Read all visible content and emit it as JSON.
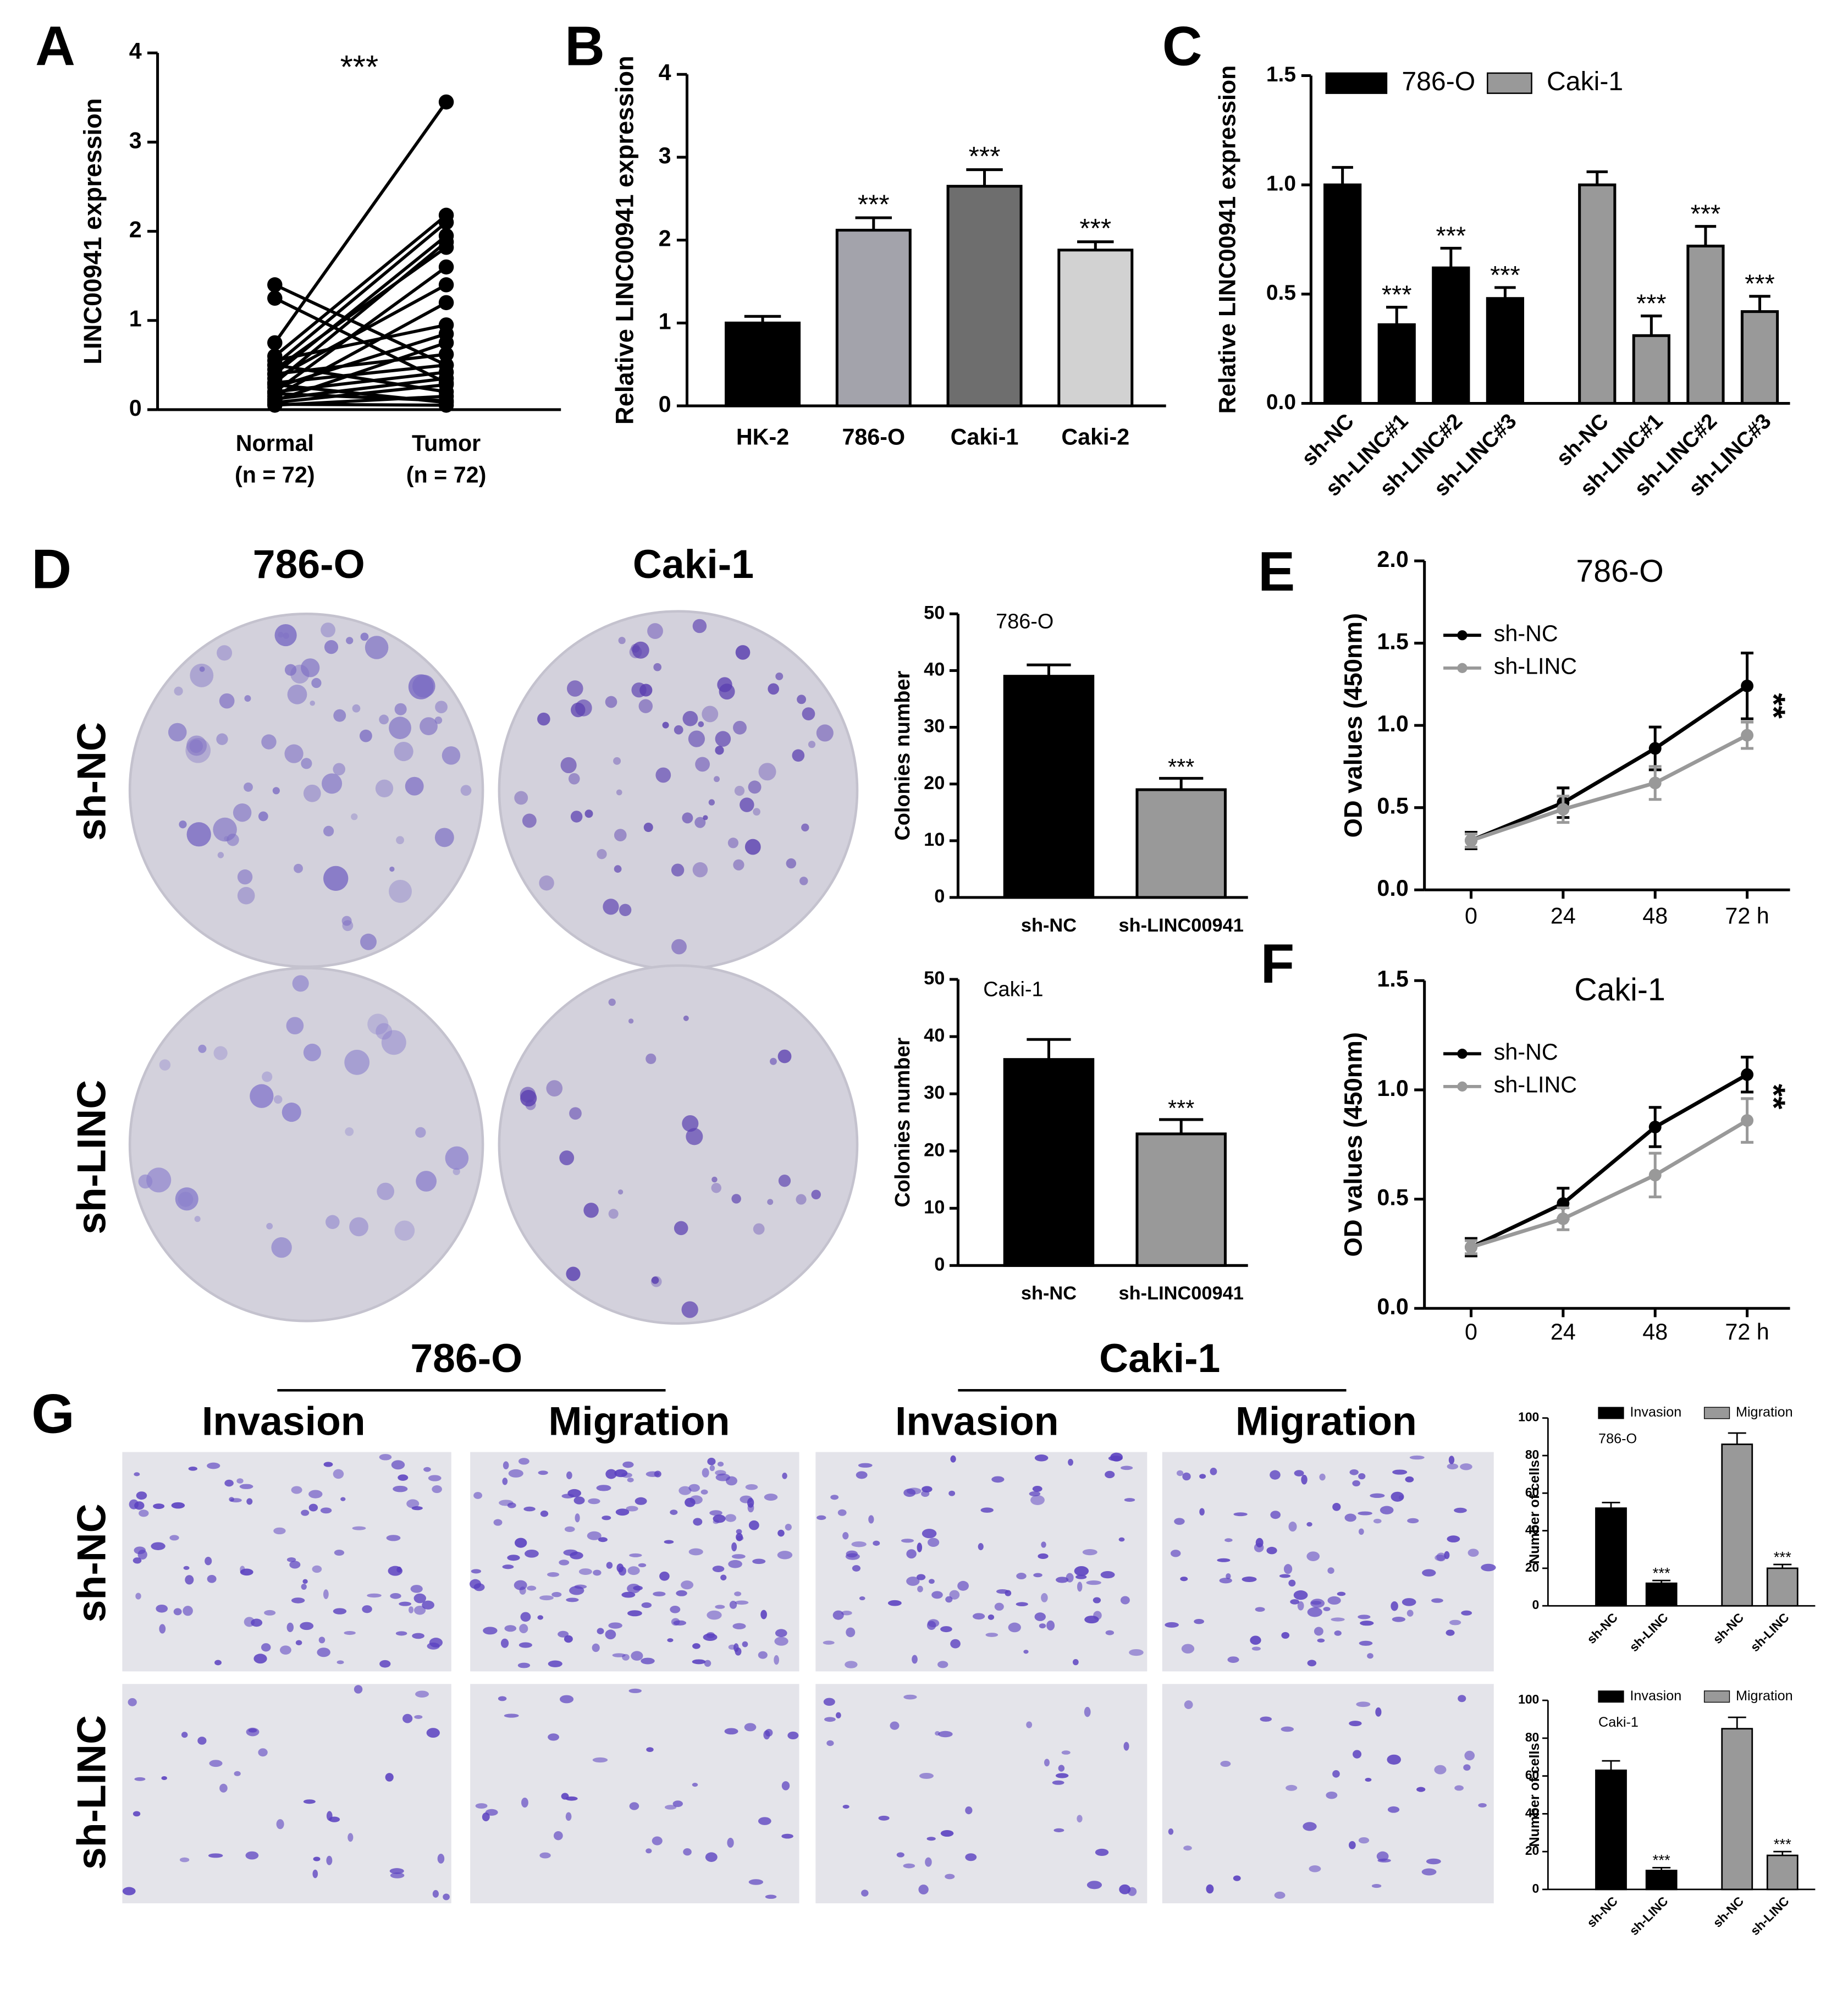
{
  "labels": {
    "panels": [
      "A",
      "B",
      "C",
      "D",
      "E",
      "F",
      "G"
    ],
    "D": {
      "columns": [
        "786-O",
        "Caki-1"
      ],
      "rows": [
        "sh-NC",
        "sh-LINC"
      ]
    },
    "G": {
      "groups": [
        "786-O",
        "Caki-1"
      ],
      "columns": [
        "Invasion",
        "Migration",
        "Invasion",
        "Migration"
      ],
      "rows": [
        "sh-NC",
        "sh-LINC"
      ]
    }
  },
  "chart_data": [
    {
      "type": "paired",
      "ylabel": "LINC00941 expression",
      "annotation": "***",
      "categories": [
        "Normal",
        "Tumor"
      ],
      "category_notes": [
        "(n = 72)",
        "(n = 72)"
      ],
      "pairs": [
        [
          1.4,
          0.5
        ],
        [
          1.25,
          0.3
        ],
        [
          0.75,
          3.45
        ],
        [
          0.6,
          2.18
        ],
        [
          0.5,
          2.1
        ],
        [
          0.4,
          1.95
        ],
        [
          0.3,
          1.88
        ],
        [
          0.45,
          1.82
        ],
        [
          0.2,
          1.6
        ],
        [
          0.35,
          1.4
        ],
        [
          0.15,
          1.2
        ],
        [
          0.55,
          0.95
        ],
        [
          0.25,
          0.85
        ],
        [
          0.1,
          0.75
        ],
        [
          0.4,
          0.62
        ],
        [
          0.3,
          0.5
        ],
        [
          0.2,
          0.42
        ],
        [
          0.12,
          0.35
        ],
        [
          0.08,
          0.28
        ],
        [
          0.5,
          0.2
        ],
        [
          0.05,
          0.15
        ],
        [
          0.18,
          0.1
        ],
        [
          0.28,
          0.08
        ],
        [
          0.06,
          0.05
        ]
      ],
      "color": "#000000",
      "ylim": [
        0,
        4
      ],
      "yticks": [
        0,
        1,
        2,
        3,
        4
      ]
    },
    {
      "type": "bar",
      "ylabel": "Relative LINC00941 expression",
      "categories": [
        "HK-2",
        "786-O",
        "Caki-1",
        "Caki-2"
      ],
      "values": [
        1.0,
        2.12,
        2.65,
        1.88
      ],
      "errors": [
        0.08,
        0.15,
        0.2,
        0.1
      ],
      "significance": [
        null,
        "***",
        "***",
        "***"
      ],
      "colors": [
        "#000000",
        "#a3a3ab",
        "#6e6e6e",
        "#d2d2d2"
      ],
      "ylim": [
        0,
        4
      ],
      "yticks": [
        0,
        1,
        2,
        3,
        4
      ]
    },
    {
      "type": "grouped_bar",
      "ylabel": "Relative LINC00941 expression",
      "categories": [
        "sh-NC",
        "sh-LINC#1",
        "sh-LINC#2",
        "sh-LINC#3"
      ],
      "series": [
        {
          "name": "786-O",
          "color": "#000000",
          "values": [
            1.0,
            0.36,
            0.62,
            0.48
          ],
          "errors": [
            0.08,
            0.08,
            0.09,
            0.05
          ],
          "significance": [
            null,
            "***",
            "***",
            "***"
          ]
        },
        {
          "name": "Caki-1",
          "color": "#999999",
          "values": [
            1.0,
            0.31,
            0.72,
            0.42
          ],
          "errors": [
            0.06,
            0.09,
            0.09,
            0.07
          ],
          "significance": [
            null,
            "***",
            "***",
            "***"
          ]
        }
      ],
      "ylim": [
        0,
        1.5
      ],
      "yticks": [
        {
          "value": 0,
          "label": "0.0"
        },
        {
          "value": 0.5,
          "label": "0.5"
        },
        {
          "value": 1,
          "label": "1.0"
        },
        {
          "value": 1.5,
          "label": "1.5"
        }
      ]
    },
    {
      "type": "bar",
      "subtitle": "786-O",
      "ylabel": "Colonies number",
      "categories": [
        "sh-NC",
        "sh-LINC00941"
      ],
      "values": [
        39,
        19
      ],
      "errors": [
        2,
        2
      ],
      "significance": [
        null,
        "***"
      ],
      "colors": [
        "#000000",
        "#999999"
      ],
      "ylim": [
        0,
        50
      ],
      "yticks": [
        0,
        10,
        20,
        30,
        40,
        50
      ]
    },
    {
      "type": "bar",
      "subtitle": "Caki-1",
      "ylabel": "Colonies number",
      "categories": [
        "sh-NC",
        "sh-LINC00941"
      ],
      "values": [
        36,
        23
      ],
      "errors": [
        3.5,
        2.5
      ],
      "significance": [
        null,
        "***"
      ],
      "colors": [
        "#000000",
        "#999999"
      ],
      "ylim": [
        0,
        50
      ],
      "yticks": [
        0,
        10,
        20,
        30,
        40,
        50
      ]
    },
    {
      "type": "line",
      "title": "786-O",
      "ylabel": "OD values (450nm)",
      "annotation": "**",
      "categories": [
        "0",
        "24",
        "48",
        "72 h"
      ],
      "series": [
        {
          "name": "sh-NC",
          "color": "#000000",
          "values": [
            0.3,
            0.53,
            0.86,
            1.24
          ],
          "errors": [
            0.05,
            0.09,
            0.13,
            0.2
          ]
        },
        {
          "name": "sh-LINC",
          "color": "#999999",
          "values": [
            0.3,
            0.49,
            0.65,
            0.94
          ],
          "errors": [
            0.04,
            0.08,
            0.1,
            0.08
          ]
        }
      ],
      "ylim": [
        0,
        2
      ],
      "yticks": [
        {
          "value": 0,
          "label": "0.0"
        },
        {
          "value": 0.5,
          "label": "0.5"
        },
        {
          "value": 1,
          "label": "1.0"
        },
        {
          "value": 1.5,
          "label": "1.5"
        },
        {
          "value": 2,
          "label": "2.0"
        }
      ]
    },
    {
      "type": "line",
      "title": "Caki-1",
      "ylabel": "OD values (450nm)",
      "annotation": "**",
      "categories": [
        "0",
        "24",
        "48",
        "72 h"
      ],
      "series": [
        {
          "name": "sh-NC",
          "color": "#000000",
          "values": [
            0.28,
            0.48,
            0.83,
            1.07
          ],
          "errors": [
            0.04,
            0.07,
            0.09,
            0.08
          ]
        },
        {
          "name": "sh-LINC",
          "color": "#999999",
          "values": [
            0.28,
            0.41,
            0.61,
            0.86
          ],
          "errors": [
            0.03,
            0.05,
            0.1,
            0.1
          ]
        }
      ],
      "ylim": [
        0,
        1.5
      ],
      "yticks": [
        {
          "value": 0,
          "label": "0.0"
        },
        {
          "value": 0.5,
          "label": "0.5"
        },
        {
          "value": 1,
          "label": "1.0"
        },
        {
          "value": 1.5,
          "label": "1.5"
        }
      ]
    },
    {
      "type": "grouped_bar",
      "subtitle": "786-O",
      "ylabel": "Number of cells",
      "categories": [
        "sh-NC",
        "sh-LINC"
      ],
      "series": [
        {
          "name": "Invasion",
          "color": "#000000",
          "values": [
            52,
            12
          ],
          "errors": [
            3,
            1.5
          ],
          "significance": [
            null,
            "***"
          ]
        },
        {
          "name": "Migration",
          "color": "#999999",
          "values": [
            86,
            20
          ],
          "errors": [
            6,
            2
          ],
          "significance": [
            null,
            "***"
          ]
        }
      ],
      "ylim": [
        0,
        100
      ],
      "yticks": [
        0,
        20,
        40,
        60,
        80,
        100
      ]
    },
    {
      "type": "grouped_bar",
      "subtitle": "Caki-1",
      "ylabel": "Number of cells",
      "categories": [
        "sh-NC",
        "sh-LINC"
      ],
      "series": [
        {
          "name": "Invasion",
          "color": "#000000",
          "values": [
            63,
            10
          ],
          "errors": [
            5,
            1.5
          ],
          "significance": [
            null,
            "***"
          ]
        },
        {
          "name": "Migration",
          "color": "#999999",
          "values": [
            85,
            18
          ],
          "errors": [
            6,
            2
          ],
          "significance": [
            null,
            "***"
          ]
        }
      ],
      "ylim": [
        0,
        100
      ],
      "yticks": [
        0,
        20,
        40,
        60,
        80,
        100
      ]
    }
  ]
}
